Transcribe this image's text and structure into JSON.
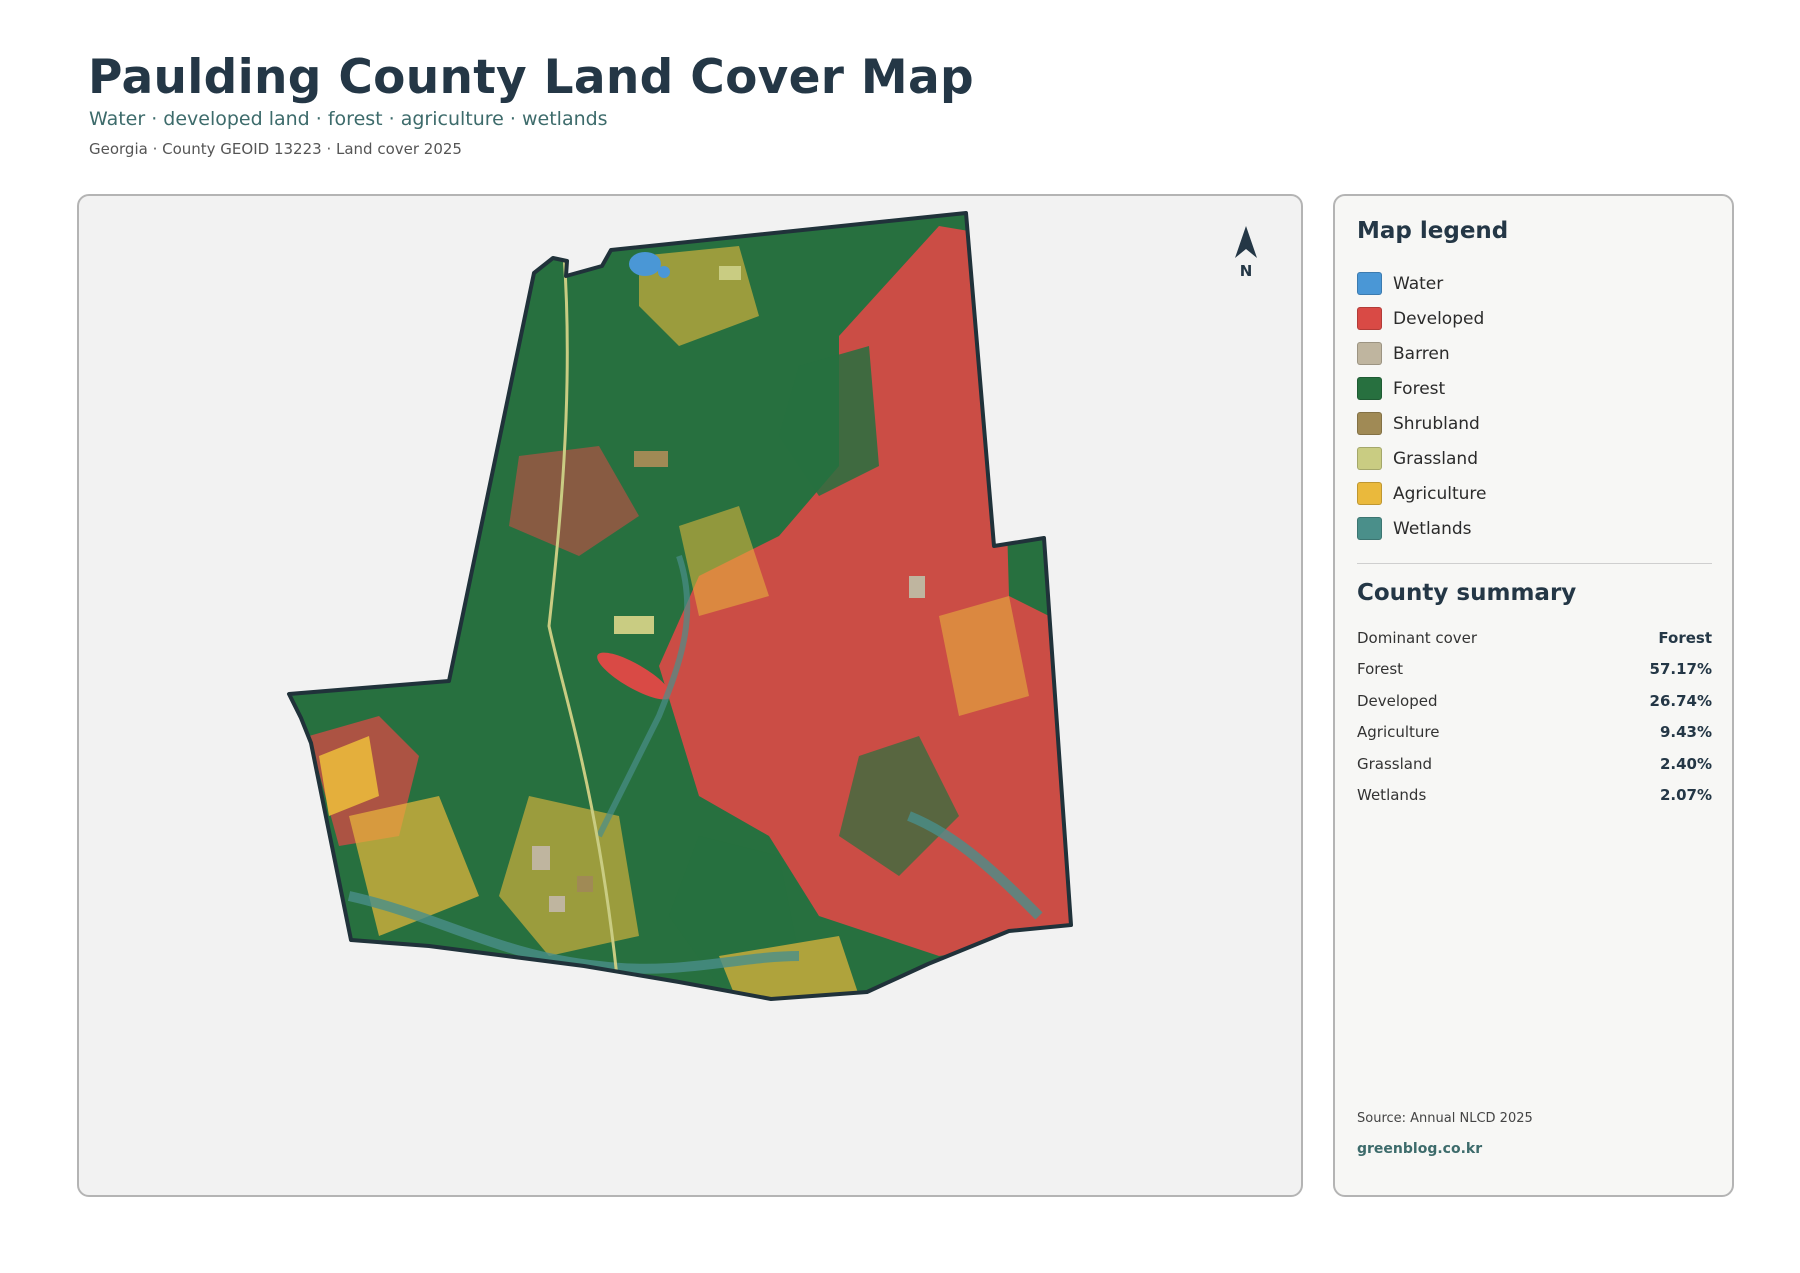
{
  "header": {
    "title": "Paulding County Land Cover Map",
    "subtitle": "Water · developed land · forest · agriculture · wetlands",
    "meta": "Georgia · County GEOID 13223 · Land cover 2025"
  },
  "map": {
    "north_label": "N",
    "classes": {
      "water": "#4a97d6",
      "developed": "#d94a45",
      "barren": "#bfb59f",
      "forest": "#27703f",
      "shrubland": "#a08a55",
      "grassland": "#c9cc82",
      "agriculture": "#eab93c",
      "wetlands": "#4a8f8a"
    }
  },
  "legend": {
    "title": "Map legend",
    "items": [
      {
        "label": "Water",
        "color": "#4a97d6"
      },
      {
        "label": "Developed",
        "color": "#d94a45"
      },
      {
        "label": "Barren",
        "color": "#bfb59f"
      },
      {
        "label": "Forest",
        "color": "#27703f"
      },
      {
        "label": "Shrubland",
        "color": "#a08a55"
      },
      {
        "label": "Grassland",
        "color": "#c9cc82"
      },
      {
        "label": "Agriculture",
        "color": "#eab93c"
      },
      {
        "label": "Wetlands",
        "color": "#4a8f8a"
      }
    ]
  },
  "summary": {
    "title": "County summary",
    "rows": [
      {
        "key": "Dominant cover",
        "value": "Forest"
      },
      {
        "key": "Forest",
        "value": "57.17%"
      },
      {
        "key": "Developed",
        "value": "26.74%"
      },
      {
        "key": "Agriculture",
        "value": "9.43%"
      },
      {
        "key": "Grassland",
        "value": "2.40%"
      },
      {
        "key": "Wetlands",
        "value": "2.07%"
      }
    ]
  },
  "footer": {
    "source": "Source: Annual NLCD 2025",
    "site": "greenblog.co.kr"
  }
}
